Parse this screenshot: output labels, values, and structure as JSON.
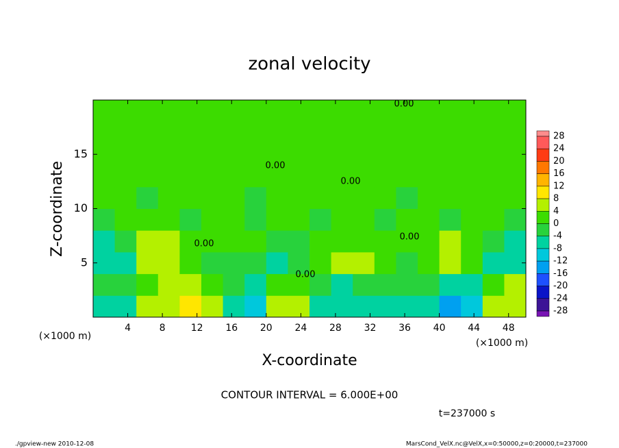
{
  "chart_data": {
    "type": "contour",
    "title": "zonal velocity",
    "x_label": "X-coordinate",
    "y_label": "Z-coordinate",
    "x_unit_left": "(×1000 m)",
    "x_unit_right": "(×1000 m)",
    "xlim": [
      0,
      50
    ],
    "ylim": [
      0,
      20
    ],
    "xticks": [
      4,
      8,
      12,
      16,
      20,
      24,
      28,
      32,
      36,
      40,
      44,
      48
    ],
    "yticks": [
      5,
      10,
      15
    ],
    "x": [
      1.25,
      3.75,
      6.25,
      8.75,
      11.25,
      13.75,
      16.25,
      18.75,
      21.25,
      23.75,
      26.25,
      28.75,
      31.25,
      33.75,
      36.25,
      38.75,
      41.25,
      43.75,
      46.25,
      48.75
    ],
    "z": [
      1,
      3,
      5,
      7,
      9,
      11,
      13,
      15,
      17,
      19
    ],
    "values": [
      [
        -6,
        -6,
        4,
        7,
        9,
        6,
        -6,
        -12,
        6,
        5,
        -6,
        -8,
        -8,
        -7,
        -6,
        -6,
        -14,
        -12,
        6,
        7
      ],
      [
        -3,
        -2,
        2,
        4,
        5,
        3,
        -2,
        -6,
        2,
        1,
        -3,
        -5,
        -4,
        -4,
        -3,
        -3,
        -6,
        -5,
        3,
        4
      ],
      [
        -6,
        -5,
        5,
        6,
        2,
        -2,
        -3,
        -1,
        -5,
        -3,
        2,
        5,
        6,
        3,
        -1,
        2,
        5,
        3,
        -5,
        -7
      ],
      [
        -6,
        -4,
        5,
        6,
        3,
        2,
        3,
        1,
        -2,
        -1,
        1,
        3,
        3,
        2,
        1,
        1,
        4,
        3,
        -3,
        -5
      ],
      [
        -1,
        0,
        1,
        1,
        -1,
        1,
        2,
        -1,
        0,
        1,
        -1,
        1,
        1,
        -1,
        1,
        1,
        -1,
        1,
        1,
        -1
      ],
      [
        1,
        1,
        -1,
        1,
        1,
        1,
        1,
        -1,
        1,
        1,
        1,
        1,
        1,
        1,
        -1,
        1,
        1,
        1,
        1,
        1
      ],
      [
        1,
        1,
        1,
        1,
        1,
        1,
        1,
        1,
        1,
        1,
        1,
        1,
        1,
        1,
        1,
        1,
        1,
        1,
        1,
        1
      ],
      [
        1,
        1,
        1,
        1,
        1,
        1,
        1,
        1,
        1,
        1,
        1,
        1,
        1,
        1,
        1,
        1,
        1,
        1,
        1,
        1
      ],
      [
        1,
        1,
        1,
        1,
        1,
        1,
        1,
        1,
        1,
        1,
        1,
        1,
        1,
        1,
        1,
        1,
        1,
        1,
        1,
        1
      ],
      [
        1,
        1,
        1,
        1,
        1,
        1,
        1,
        1,
        1,
        1,
        1,
        1,
        1,
        1,
        1,
        1,
        1,
        1,
        1,
        1
      ]
    ],
    "colorbar": {
      "levels": [
        28,
        24,
        20,
        16,
        12,
        8,
        4,
        0,
        -4,
        -8,
        -12,
        -16,
        -20,
        -24,
        -28
      ],
      "colors": [
        "#ff8c8c",
        "#ff5a5a",
        "#ff3c14",
        "#ff7800",
        "#ffb400",
        "#ffe600",
        "#b4f000",
        "#3cdc00",
        "#28d23c",
        "#00d2a0",
        "#00c8dc",
        "#00a0f0",
        "#1e50ff",
        "#0a14c8",
        "#3c1496",
        "#7814b4"
      ]
    },
    "contour_labels": [
      "0.00",
      "0.00",
      "0.00",
      "0.00",
      "0.00",
      "0.00"
    ],
    "contour_interval": "CONTOUR INTERVAL = 6.000E+00",
    "time": "t=237000 s",
    "footer_left": "./gpview-new  2010-12-08",
    "footer_right": "MarsCond_VelX.nc@VelX,x=0:50000,z=0:20000,t=237000"
  }
}
